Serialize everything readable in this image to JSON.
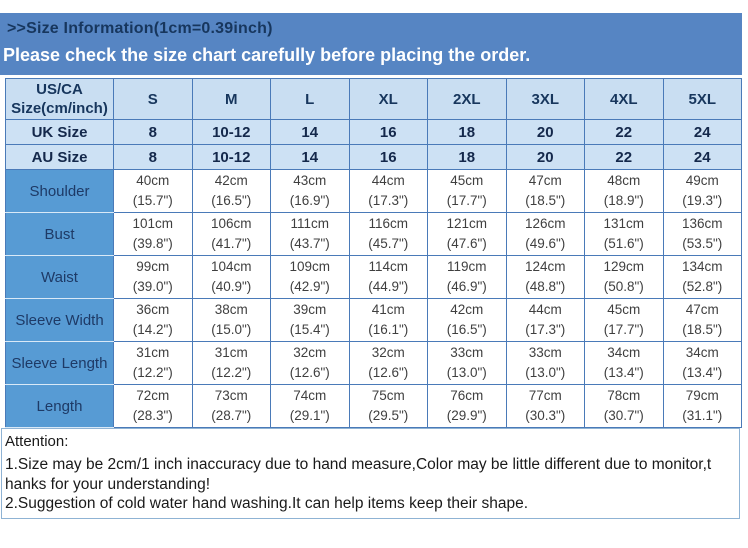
{
  "colors": {
    "band-blue": "#5685c3",
    "label-blue": "#579bd4",
    "header-light-blue": "#c9def2",
    "row-light-blue": "#cde1f4",
    "grid-border": "#4a7ab8",
    "title-navy": "#17365d",
    "subtitle-white": "#ffffff",
    "attention-border": "#8fb3d4"
  },
  "header": {
    "title": ">>Size Information(1cm=0.39inch)",
    "subtitle": "Please check the size chart carefully before placing the order."
  },
  "table": {
    "corner_label": "US/CA\nSize(cm/inch)",
    "size_columns": [
      "S",
      "M",
      "L",
      "XL",
      "2XL",
      "3XL",
      "4XL",
      "5XL"
    ],
    "simple_rows": [
      {
        "label": "UK Size",
        "values": [
          "8",
          "10-12",
          "14",
          "16",
          "18",
          "20",
          "22",
          "24"
        ]
      },
      {
        "label": "AU Size",
        "values": [
          "8",
          "10-12",
          "14",
          "16",
          "18",
          "20",
          "22",
          "24"
        ]
      }
    ],
    "measure_rows": [
      {
        "label": "Shoulder",
        "values": [
          "40cm\n(15.7\")",
          "42cm\n(16.5\")",
          "43cm\n(16.9\")",
          "44cm\n(17.3\")",
          "45cm\n(17.7\")",
          "47cm\n(18.5\")",
          "48cm\n(18.9\")",
          "49cm\n(19.3\")"
        ]
      },
      {
        "label": "Bust",
        "values": [
          "101cm\n(39.8\")",
          "106cm\n(41.7\")",
          "111cm\n(43.7\")",
          "116cm\n(45.7\")",
          "121cm\n(47.6\")",
          "126cm\n(49.6\")",
          "131cm\n(51.6\")",
          "136cm\n(53.5\")"
        ]
      },
      {
        "label": "Waist",
        "values": [
          "99cm\n(39.0\")",
          "104cm\n(40.9\")",
          "109cm\n(42.9\")",
          "114cm\n(44.9\")",
          "119cm\n(46.9\")",
          "124cm\n(48.8\")",
          "129cm\n(50.8\")",
          "134cm\n(52.8\")"
        ]
      },
      {
        "label": "Sleeve Width",
        "values": [
          "36cm\n(14.2\")",
          "38cm\n(15.0\")",
          "39cm\n(15.4\")",
          "41cm\n(16.1\")",
          "42cm\n(16.5\")",
          "44cm\n(17.3\")",
          "45cm\n(17.7\")",
          "47cm\n(18.5\")"
        ]
      },
      {
        "label": "Sleeve Length",
        "values": [
          "31cm\n(12.2\")",
          "31cm\n(12.2\")",
          "32cm\n(12.6\")",
          "32cm\n(12.6\")",
          "33cm\n(13.0\")",
          "33cm\n(13.0\")",
          "34cm\n(13.4\")",
          "34cm\n(13.4\")"
        ]
      },
      {
        "label": "Length",
        "values": [
          "72cm\n(28.3\")",
          "73cm\n(28.7\")",
          "74cm\n(29.1\")",
          "75cm\n(29.5\")",
          "76cm\n(29.9\")",
          "77cm\n(30.3\")",
          "78cm\n(30.7\")",
          "79cm\n(31.1\")"
        ]
      }
    ]
  },
  "attention": {
    "title": "Attention:",
    "lines": [
      "1.Size may be 2cm/1 inch inaccuracy due to hand measure,Color may be little different due to monitor,t",
      "hanks for your understanding!",
      "2.Suggestion of cold water hand washing.It can help items keep their shape."
    ]
  }
}
